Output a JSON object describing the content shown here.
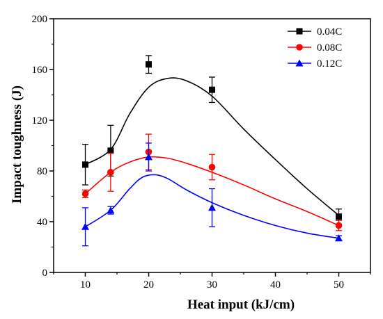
{
  "chart_data": {
    "type": "scatter",
    "xlabel": "Heat input (kJ/cm)",
    "ylabel": "Impact toughness (J)",
    "xlim": [
      5,
      55
    ],
    "ylim": [
      0,
      200
    ],
    "xticks": [
      10,
      20,
      30,
      40,
      50
    ],
    "yticks": [
      0,
      40,
      80,
      120,
      160,
      200
    ],
    "x_tick_labels": [
      "10",
      "20",
      "30",
      "40",
      "50"
    ],
    "y_tick_labels": [
      "0",
      "40",
      "80",
      "120",
      "160",
      "200"
    ],
    "grid": false,
    "legend_position": "top-right",
    "x": [
      10,
      14,
      20,
      30,
      50
    ],
    "series": [
      {
        "name": "0.04C",
        "color": "#000000",
        "marker": "square",
        "values": [
          85,
          96,
          164,
          144,
          44
        ],
        "error": [
          16,
          20,
          7,
          10,
          6
        ],
        "fit_curve": [
          [
            10,
            85
          ],
          [
            14,
            97
          ],
          [
            17,
            125
          ],
          [
            20,
            146
          ],
          [
            23,
            153
          ],
          [
            26,
            151
          ],
          [
            30,
            139
          ],
          [
            35,
            113
          ],
          [
            40,
            89
          ],
          [
            45,
            66
          ],
          [
            50,
            45
          ]
        ]
      },
      {
        "name": "0.08C",
        "color": "#ff0000",
        "marker": "circle",
        "values": [
          62,
          79,
          95,
          83,
          37
        ],
        "error": [
          3,
          15,
          14,
          10,
          4
        ],
        "fit_curve": [
          [
            10,
            62
          ],
          [
            14,
            79
          ],
          [
            17,
            87
          ],
          [
            20,
            91
          ],
          [
            23,
            90
          ],
          [
            26,
            86
          ],
          [
            30,
            79
          ],
          [
            35,
            69
          ],
          [
            40,
            58
          ],
          [
            45,
            48
          ],
          [
            50,
            37
          ]
        ]
      },
      {
        "name": "0.12C",
        "color": "#0000ff",
        "marker": "triangle",
        "values": [
          36,
          49,
          91,
          51,
          27
        ],
        "error": [
          15,
          3,
          11,
          15,
          2
        ],
        "fit_curve": [
          [
            10,
            36
          ],
          [
            14,
            49
          ],
          [
            17,
            66
          ],
          [
            19,
            75
          ],
          [
            21,
            77
          ],
          [
            23,
            74
          ],
          [
            26,
            65
          ],
          [
            30,
            55
          ],
          [
            35,
            45
          ],
          [
            40,
            37
          ],
          [
            45,
            31
          ],
          [
            50,
            27
          ]
        ]
      }
    ]
  }
}
